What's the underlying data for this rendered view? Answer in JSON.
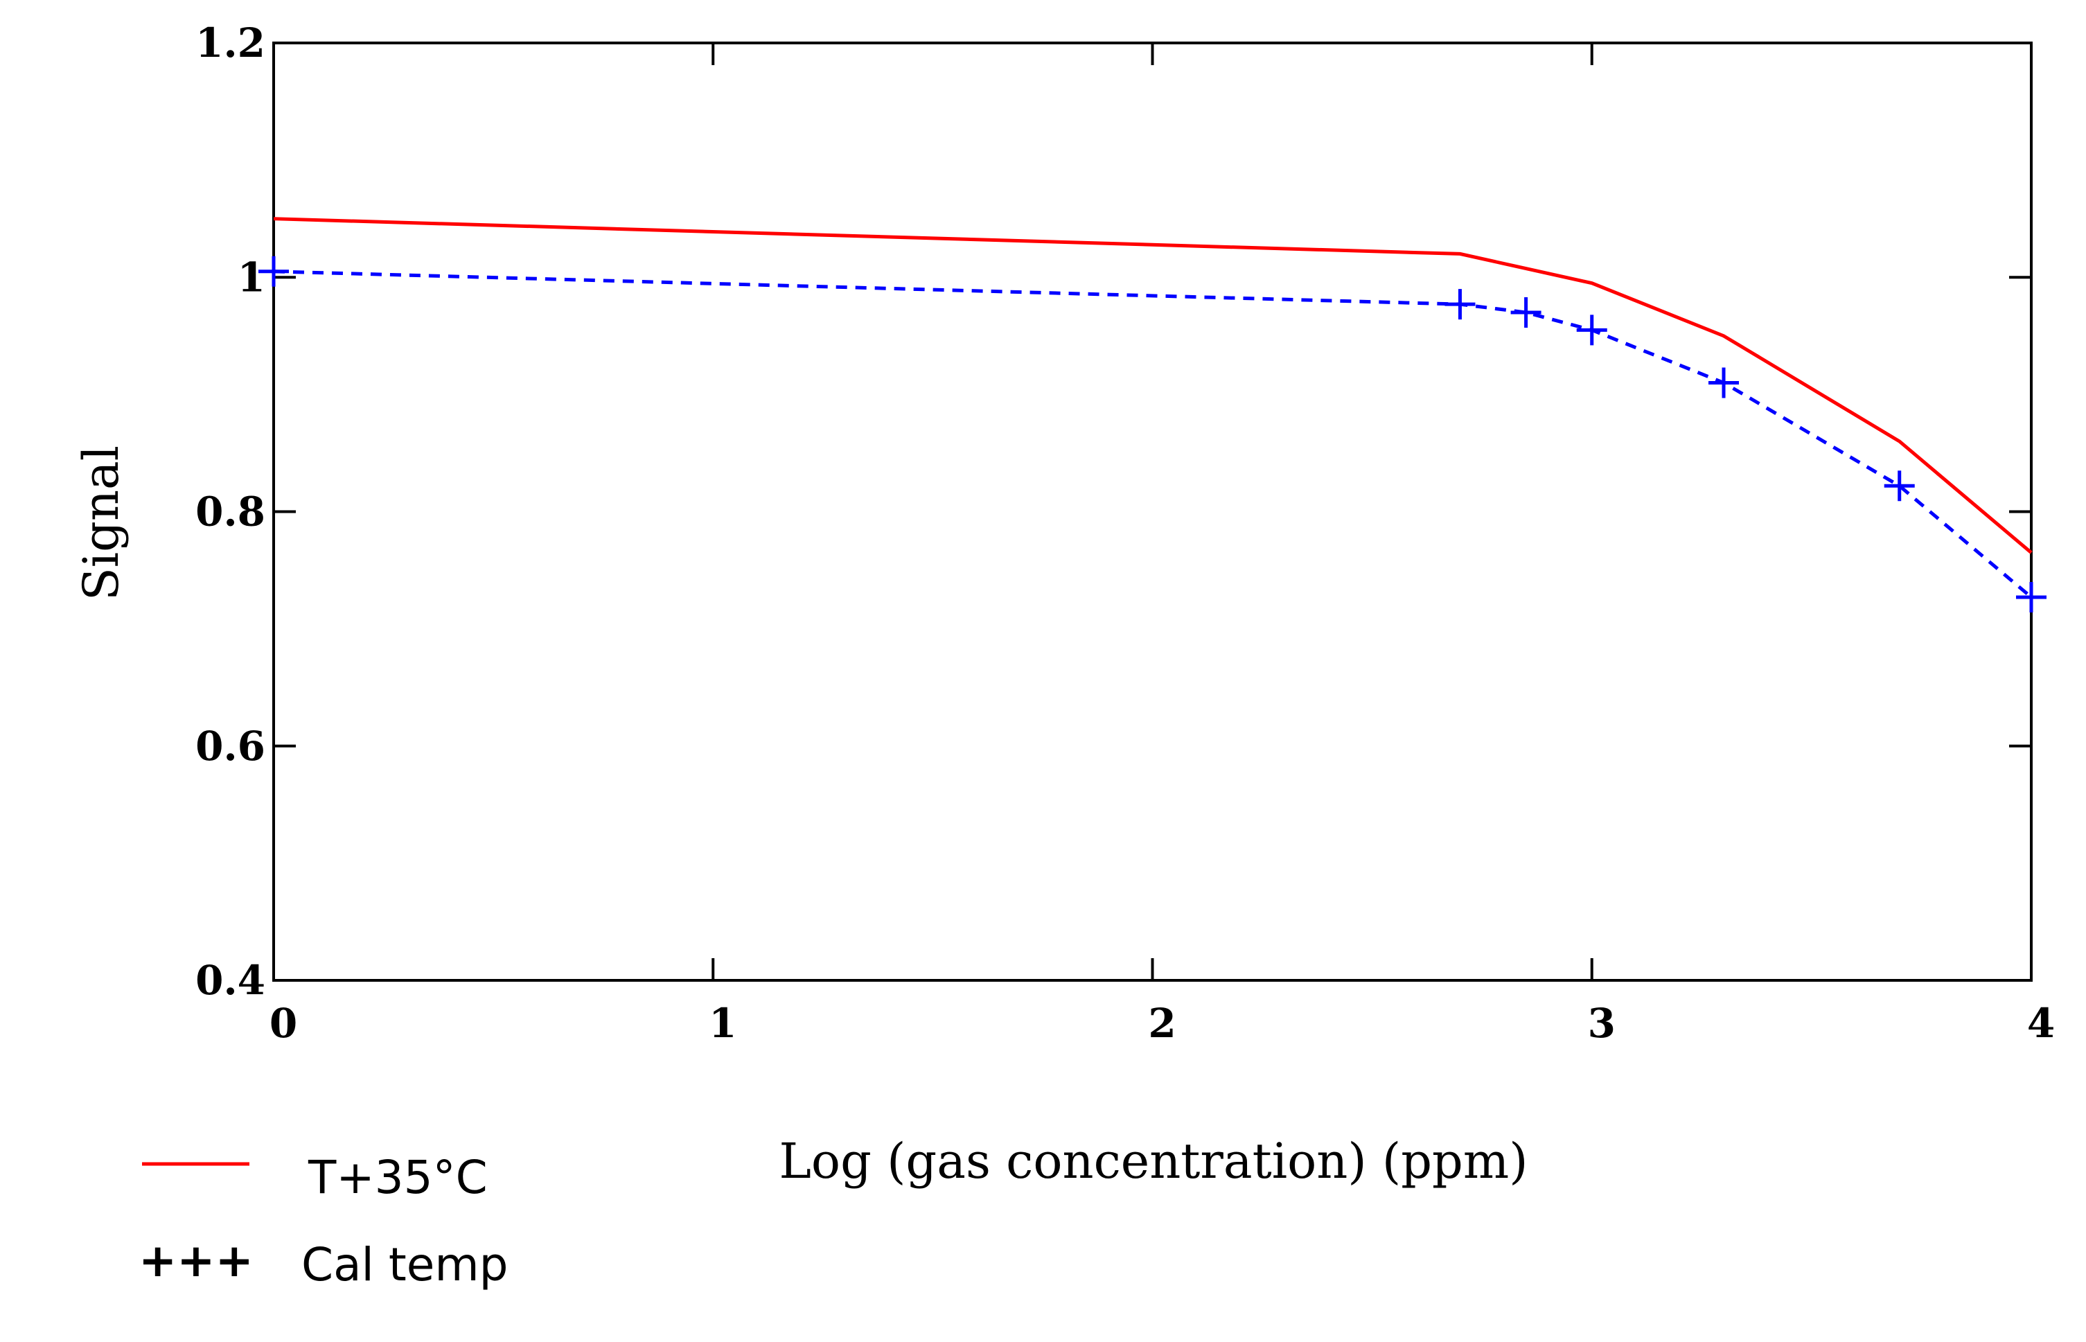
{
  "chart_data": {
    "type": "line",
    "title": "",
    "xlabel": "Log (gas concentration) (ppm)",
    "ylabel": "Signal",
    "xlim": [
      0,
      4
    ],
    "ylim": [
      0.4,
      1.2
    ],
    "x_ticks": [
      0,
      1,
      2,
      3,
      4
    ],
    "x_tick_labels": [
      "0",
      "1",
      "2",
      "3",
      "4"
    ],
    "y_ticks": [
      0.4,
      0.6,
      0.8,
      1.0,
      1.2
    ],
    "y_tick_labels": [
      "0.4",
      "0.6",
      "0.8",
      "1",
      "1.2"
    ],
    "grid": false,
    "legend_position": "bottom-left",
    "series": [
      {
        "name": "T+35°C",
        "color": "#ff0000",
        "style": "solid",
        "x": [
          0,
          2.7,
          3.0,
          3.3,
          3.7,
          4.0
        ],
        "y": [
          1.05,
          1.02,
          0.995,
          0.95,
          0.86,
          0.765
        ]
      },
      {
        "name": "Cal temp",
        "color": "#0000ff",
        "style": "dashed",
        "markers": "+",
        "x": [
          0,
          2.7,
          2.85,
          3.0,
          3.3,
          3.7,
          4.0
        ],
        "y": [
          1.005,
          0.977,
          0.97,
          0.955,
          0.91,
          0.822,
          0.727
        ],
        "marker_x": [
          0,
          2.7,
          2.85,
          3.0,
          3.3,
          3.7,
          4.0
        ]
      }
    ],
    "legend": {
      "entries": [
        {
          "label": "T+35°C",
          "symbol": "line",
          "color": "#ff0000"
        },
        {
          "label": "Cal temp",
          "symbol": "+++",
          "color": "#0000ff"
        }
      ]
    }
  }
}
